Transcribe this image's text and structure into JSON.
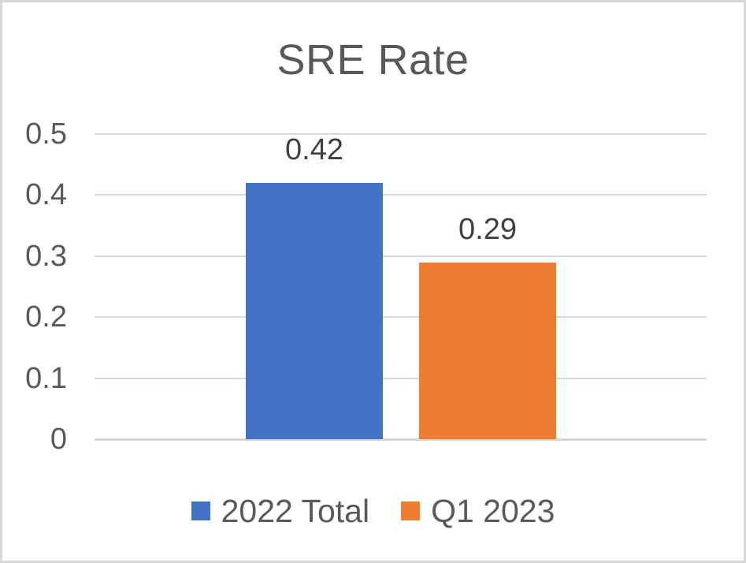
{
  "chart_data": {
    "type": "bar",
    "title": "SRE Rate",
    "categories": [
      ""
    ],
    "series": [
      {
        "name": "2022 Total",
        "value": 0.42,
        "data_label": "0.42",
        "color": "#4472C4"
      },
      {
        "name": "Q1 2023",
        "value": 0.29,
        "data_label": "0.29",
        "color": "#ED7D31"
      }
    ],
    "xlabel": "",
    "ylabel": "",
    "ylim": [
      0,
      0.5
    ],
    "y_ticks": [
      "0.5",
      "0.4",
      "0.3",
      "0.2",
      "0.1",
      "0"
    ],
    "grid": true,
    "legend_position": "bottom",
    "colors": {
      "title_text": "#595959",
      "axis_text": "#595959",
      "data_label_text": "#404040",
      "gridline": "#d9d9d9",
      "chart_border": "#d7d7d7",
      "background": "#ffffff"
    }
  }
}
